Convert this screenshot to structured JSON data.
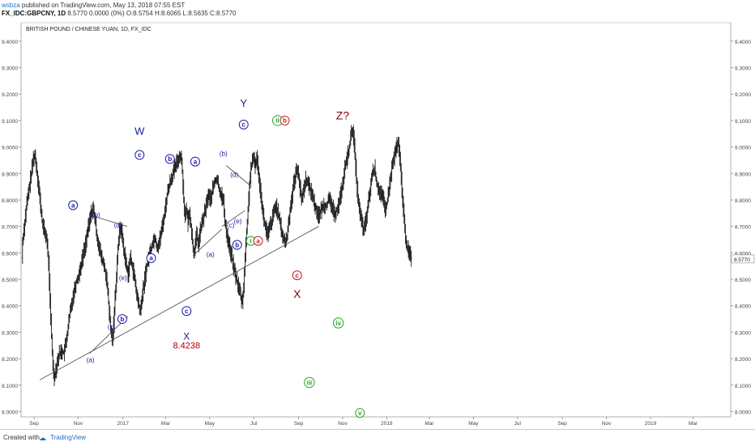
{
  "header": {
    "line1_author": "wsbza",
    "line1_rest": " published on TradingView.com, May 13, 2018 07:55 EST",
    "line2_ticker": "FX_IDC:GBPCNY, 1D",
    "line2_values": " 8.5770 0.0000 (0%) O:8.5754 H:8.6065 L:8.5635 C:8.5770"
  },
  "footer": {
    "created_label": "Created with",
    "brand": "TradingView"
  },
  "chart_data": {
    "type": "line",
    "style": "ohlc-bars",
    "title": "BRITISH POUND / CHINESE YUAN, 1D, FX_IDC",
    "ylim": [
      7.98,
      9.47
    ],
    "yticks": [
      "9.4000",
      "9.3000",
      "9.2000",
      "9.1000",
      "9.0000",
      "8.9000",
      "8.8000",
      "8.7000",
      "8.6000",
      "8.5000",
      "8.4000",
      "8.3000",
      "8.2000",
      "8.1000",
      "8.0000"
    ],
    "last_price_label": "8.5770",
    "last_price": 8.577,
    "xticks": [
      {
        "label": "Sep",
        "d": 16
      },
      {
        "label": "Nov",
        "d": 77
      },
      {
        "label": "2017",
        "d": 139
      },
      {
        "label": "Mar",
        "d": 198
      },
      {
        "label": "May",
        "d": 259
      },
      {
        "label": "Jul",
        "d": 320
      },
      {
        "label": "Sep",
        "d": 382
      },
      {
        "label": "Nov",
        "d": 443
      },
      {
        "label": "2018",
        "d": 504
      },
      {
        "label": "Mar",
        "d": 563
      },
      {
        "label": "May",
        "d": 624
      },
      {
        "label": "Jul",
        "d": 685
      },
      {
        "label": "Sep",
        "d": 747
      },
      {
        "label": "Nov",
        "d": 808
      },
      {
        "label": "2019",
        "d": 869
      },
      {
        "label": "Mar",
        "d": 928
      }
    ],
    "xlim": [
      -2,
      980
    ],
    "price_path": [
      [
        0,
        8.64
      ],
      [
        3,
        8.72
      ],
      [
        6,
        8.79
      ],
      [
        9,
        8.84
      ],
      [
        12,
        8.9
      ],
      [
        15,
        8.96
      ],
      [
        17,
        8.97
      ],
      [
        19,
        8.93
      ],
      [
        21,
        8.88
      ],
      [
        24,
        8.8
      ],
      [
        27,
        8.72
      ],
      [
        30,
        8.68
      ],
      [
        33,
        8.66
      ],
      [
        36,
        8.56
      ],
      [
        38,
        8.42
      ],
      [
        40,
        8.28
      ],
      [
        42,
        8.17
      ],
      [
        44,
        8.13
      ],
      [
        46,
        8.16
      ],
      [
        48,
        8.19
      ],
      [
        51,
        8.22
      ],
      [
        54,
        8.23
      ],
      [
        57,
        8.22
      ],
      [
        60,
        8.26
      ],
      [
        63,
        8.32
      ],
      [
        66,
        8.38
      ],
      [
        70,
        8.44
      ],
      [
        74,
        8.49
      ],
      [
        78,
        8.52
      ],
      [
        82,
        8.57
      ],
      [
        86,
        8.62
      ],
      [
        90,
        8.68
      ],
      [
        94,
        8.74
      ],
      [
        97,
        8.77
      ],
      [
        100,
        8.73
      ],
      [
        103,
        8.66
      ],
      [
        106,
        8.62
      ],
      [
        109,
        8.58
      ],
      [
        112,
        8.56
      ],
      [
        115,
        8.52
      ],
      [
        118,
        8.45
      ],
      [
        120,
        8.37
      ],
      [
        122,
        8.31
      ],
      [
        124,
        8.27
      ],
      [
        126,
        8.33
      ],
      [
        128,
        8.43
      ],
      [
        130,
        8.52
      ],
      [
        132,
        8.62
      ],
      [
        134,
        8.68
      ],
      [
        136,
        8.7
      ],
      [
        138,
        8.66
      ],
      [
        140,
        8.61
      ],
      [
        143,
        8.56
      ],
      [
        146,
        8.52
      ],
      [
        149,
        8.58
      ],
      [
        152,
        8.55
      ],
      [
        155,
        8.5
      ],
      [
        158,
        8.44
      ],
      [
        161,
        8.4
      ],
      [
        163,
        8.37
      ],
      [
        165,
        8.43
      ],
      [
        168,
        8.48
      ],
      [
        171,
        8.54
      ],
      [
        174,
        8.58
      ],
      [
        177,
        8.61
      ],
      [
        180,
        8.64
      ],
      [
        183,
        8.66
      ],
      [
        186,
        8.62
      ],
      [
        189,
        8.64
      ],
      [
        192,
        8.68
      ],
      [
        196,
        8.74
      ],
      [
        200,
        8.82
      ],
      [
        204,
        8.87
      ],
      [
        208,
        8.9
      ],
      [
        212,
        8.93
      ],
      [
        216,
        8.96
      ],
      [
        219,
        8.97
      ],
      [
        221,
        8.91
      ],
      [
        223,
        8.8
      ],
      [
        225,
        8.74
      ],
      [
        227,
        8.76
      ],
      [
        229,
        8.71
      ],
      [
        231,
        8.76
      ],
      [
        233,
        8.7
      ],
      [
        235,
        8.64
      ],
      [
        237,
        8.6
      ],
      [
        239,
        8.63
      ],
      [
        241,
        8.67
      ],
      [
        243,
        8.63
      ],
      [
        245,
        8.67
      ],
      [
        248,
        8.71
      ],
      [
        251,
        8.74
      ],
      [
        254,
        8.78
      ],
      [
        257,
        8.82
      ],
      [
        260,
        8.8
      ],
      [
        263,
        8.84
      ],
      [
        266,
        8.87
      ],
      [
        269,
        8.88
      ],
      [
        272,
        8.84
      ],
      [
        275,
        8.82
      ],
      [
        278,
        8.79
      ],
      [
        280,
        8.72
      ],
      [
        282,
        8.68
      ],
      [
        285,
        8.64
      ],
      [
        288,
        8.6
      ],
      [
        291,
        8.56
      ],
      [
        294,
        8.52
      ],
      [
        297,
        8.49
      ],
      [
        300,
        8.46
      ],
      [
        302,
        8.43
      ],
      [
        304,
        8.41
      ],
      [
        306,
        8.48
      ],
      [
        308,
        8.58
      ],
      [
        310,
        8.68
      ],
      [
        312,
        8.76
      ],
      [
        314,
        8.86
      ],
      [
        316,
        8.92
      ],
      [
        318,
        8.94
      ],
      [
        320,
        8.96
      ],
      [
        322,
        8.93
      ],
      [
        324,
        8.96
      ],
      [
        326,
        8.92
      ],
      [
        328,
        8.86
      ],
      [
        330,
        8.82
      ],
      [
        332,
        8.76
      ],
      [
        334,
        8.72
      ],
      [
        336,
        8.7
      ],
      [
        339,
        8.66
      ],
      [
        342,
        8.7
      ],
      [
        345,
        8.72
      ],
      [
        348,
        8.76
      ],
      [
        351,
        8.78
      ],
      [
        354,
        8.74
      ],
      [
        357,
        8.7
      ],
      [
        360,
        8.66
      ],
      [
        363,
        8.64
      ],
      [
        366,
        8.66
      ],
      [
        369,
        8.74
      ],
      [
        372,
        8.8
      ],
      [
        375,
        8.86
      ],
      [
        378,
        8.9
      ],
      [
        381,
        8.92
      ],
      [
        383,
        8.86
      ],
      [
        386,
        8.8
      ],
      [
        389,
        8.84
      ],
      [
        392,
        8.88
      ],
      [
        395,
        8.86
      ],
      [
        398,
        8.84
      ],
      [
        401,
        8.82
      ],
      [
        404,
        8.78
      ],
      [
        407,
        8.76
      ],
      [
        410,
        8.74
      ],
      [
        413,
        8.76
      ],
      [
        416,
        8.78
      ],
      [
        420,
        8.78
      ],
      [
        424,
        8.8
      ],
      [
        428,
        8.78
      ],
      [
        431,
        8.74
      ],
      [
        434,
        8.76
      ],
      [
        437,
        8.78
      ],
      [
        440,
        8.82
      ],
      [
        443,
        8.86
      ],
      [
        446,
        8.92
      ],
      [
        449,
        8.96
      ],
      [
        452,
        9.0
      ],
      [
        455,
        9.05
      ],
      [
        457,
        9.07
      ],
      [
        459,
        9.0
      ],
      [
        461,
        8.92
      ],
      [
        463,
        8.84
      ],
      [
        466,
        8.76
      ],
      [
        469,
        8.72
      ],
      [
        472,
        8.68
      ],
      [
        475,
        8.72
      ],
      [
        478,
        8.78
      ],
      [
        481,
        8.84
      ],
      [
        484,
        8.9
      ],
      [
        487,
        8.92
      ],
      [
        490,
        8.86
      ],
      [
        493,
        8.84
      ],
      [
        496,
        8.82
      ],
      [
        499,
        8.8
      ],
      [
        502,
        8.76
      ],
      [
        505,
        8.8
      ],
      [
        508,
        8.86
      ],
      [
        511,
        8.92
      ],
      [
        514,
        8.96
      ],
      [
        517,
        9.0
      ],
      [
        520,
        9.01
      ],
      [
        523,
        8.92
      ],
      [
        526,
        8.8
      ],
      [
        529,
        8.68
      ],
      [
        532,
        8.62
      ],
      [
        535,
        8.6
      ],
      [
        538,
        8.58
      ]
    ],
    "trendlines": [
      {
        "x1": 24,
        "y1": 8.12,
        "x2": 410,
        "y2": 8.7
      },
      {
        "x1": 96,
        "y1": 8.74,
        "x2": 145,
        "y2": 8.7
      },
      {
        "x1": 93,
        "y1": 8.22,
        "x2": 146,
        "y2": 8.36
      },
      {
        "x1": 236,
        "y1": 8.59,
        "x2": 276,
        "y2": 8.69
      },
      {
        "x1": 276,
        "y1": 8.7,
        "x2": 308,
        "y2": 8.76
      },
      {
        "x1": 282,
        "y1": 8.93,
        "x2": 317,
        "y2": 8.85
      }
    ],
    "annotations": [
      {
        "text": "a",
        "x": 70,
        "y": 8.78,
        "circle": true,
        "color": "#1a1aa8"
      },
      {
        "text": "(a)",
        "x": 94,
        "y": 8.195,
        "color": "#1a1aa8"
      },
      {
        "text": "(b)",
        "x": 102,
        "y": 8.745,
        "color": "#1a1aa8"
      },
      {
        "text": "(c)",
        "x": 123,
        "y": 8.32,
        "color": "#1a1aa8"
      },
      {
        "text": "b",
        "x": 138,
        "y": 8.35,
        "circle": true,
        "color": "#1a1aa8"
      },
      {
        "text": "(d)",
        "x": 132,
        "y": 8.705,
        "color": "#1a1aa8"
      },
      {
        "text": "(e)",
        "x": 139,
        "y": 8.505,
        "color": "#1a1aa8"
      },
      {
        "text": "c",
        "x": 162,
        "y": 8.97,
        "circle": true,
        "color": "#1a1aa8"
      },
      {
        "text": "W",
        "x": 162,
        "y": 9.06,
        "color": "#1a1aa8",
        "size": 13
      },
      {
        "text": "a",
        "x": 178,
        "y": 8.58,
        "circle": true,
        "color": "#1a1aa8"
      },
      {
        "text": "b",
        "x": 204,
        "y": 8.955,
        "circle": true,
        "color": "#1a1aa8"
      },
      {
        "text": "c",
        "x": 227,
        "y": 8.38,
        "circle": true,
        "color": "#1a1aa8"
      },
      {
        "text": "X",
        "x": 227,
        "y": 8.285,
        "color": "#1a1aa8",
        "size": 12
      },
      {
        "text": "8.4238",
        "x": 227,
        "y": 8.25,
        "color": "#b00000",
        "size": 11
      },
      {
        "text": "a",
        "x": 239,
        "y": 8.945,
        "circle": true,
        "color": "#1a1aa8"
      },
      {
        "text": "(a)",
        "x": 260,
        "y": 8.595,
        "color": "#1a1aa8"
      },
      {
        "text": "(b)",
        "x": 278,
        "y": 8.975,
        "color": "#1a1aa8"
      },
      {
        "text": "(c)",
        "x": 288,
        "y": 8.705,
        "color": "#1a1aa8"
      },
      {
        "text": "(d)",
        "x": 293,
        "y": 8.895,
        "color": "#1a1aa8"
      },
      {
        "text": "(e)",
        "x": 298,
        "y": 8.72,
        "color": "#1a1aa8"
      },
      {
        "text": "b",
        "x": 297,
        "y": 8.63,
        "circle": true,
        "color": "#1a1aa8"
      },
      {
        "text": "c",
        "x": 306,
        "y": 9.085,
        "circle": true,
        "color": "#1a1aa8"
      },
      {
        "text": "Y",
        "x": 306,
        "y": 9.165,
        "color": "#1a1aa8",
        "size": 13
      },
      {
        "text": "i",
        "x": 316,
        "y": 8.645,
        "circle": true,
        "color": "#28a428"
      },
      {
        "text": "a",
        "x": 326,
        "y": 8.645,
        "circle": true,
        "color": "#c41c1c"
      },
      {
        "text": "ii",
        "x": 353,
        "y": 9.1,
        "circle": true,
        "color": "#28a428"
      },
      {
        "text": "b",
        "x": 363,
        "y": 9.1,
        "circle": true,
        "color": "#c41c1c"
      },
      {
        "text": "c",
        "x": 380,
        "y": 8.515,
        "circle": true,
        "color": "#c41c1c"
      },
      {
        "text": "X",
        "x": 380,
        "y": 8.445,
        "color": "#8b0000",
        "size": 14
      },
      {
        "text": "Z?",
        "x": 443,
        "y": 9.12,
        "color": "#8b0000",
        "size": 14
      },
      {
        "text": "iii",
        "x": 397,
        "y": 8.11,
        "circle": true,
        "color": "#28a428"
      },
      {
        "text": "iv",
        "x": 437,
        "y": 8.335,
        "circle": true,
        "color": "#28a428"
      },
      {
        "text": "v",
        "x": 467,
        "y": 7.995,
        "circle": true,
        "color": "#28a428"
      }
    ]
  }
}
